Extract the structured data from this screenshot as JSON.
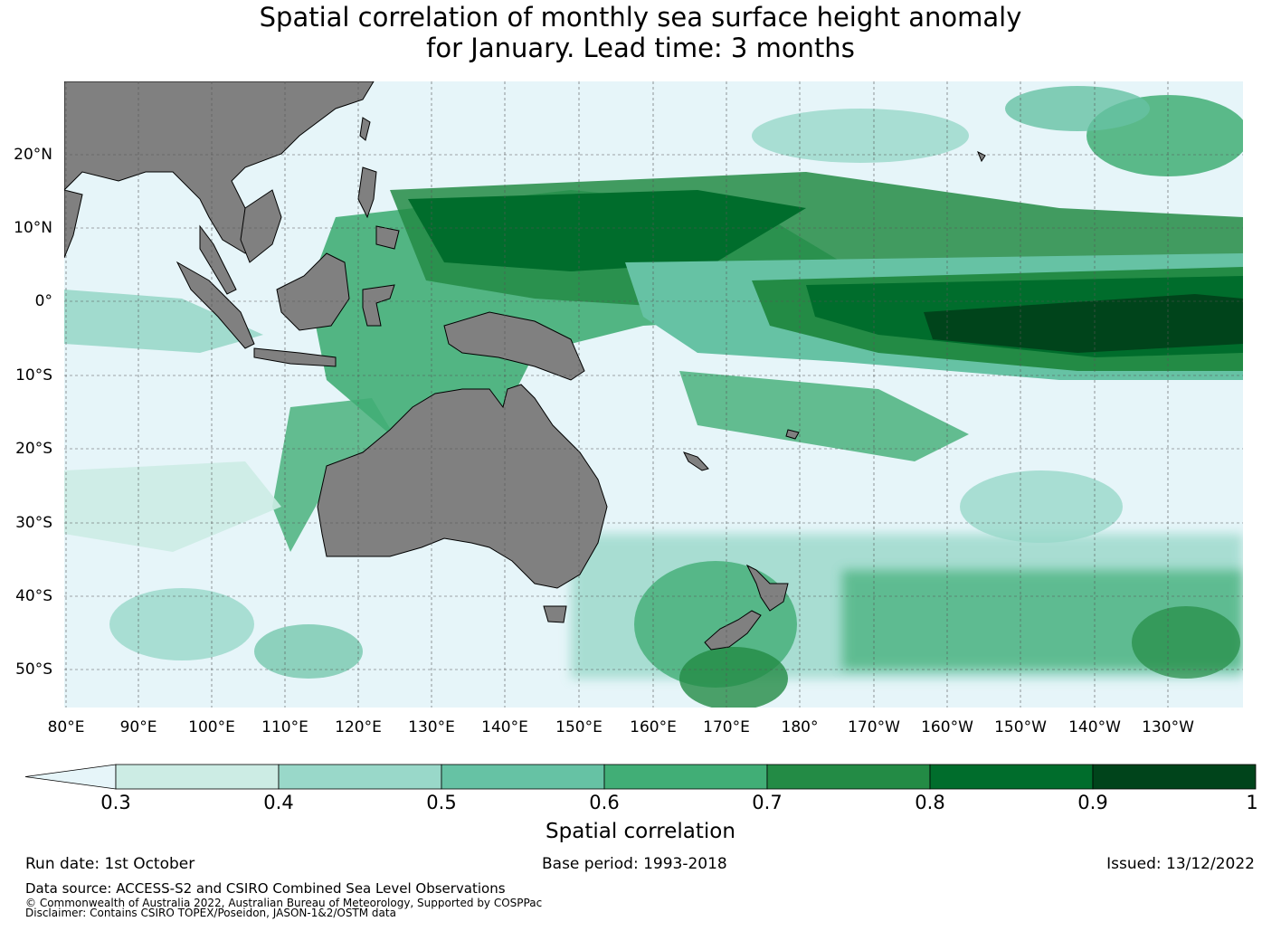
{
  "title": {
    "line1": "Spatial correlation of monthly sea surface height anomaly",
    "line2": "for January. Lead time: 3 months"
  },
  "map": {
    "latitude_labels": [
      "20°N",
      "10°N",
      "0°",
      "10°S",
      "20°S",
      "30°S",
      "40°S",
      "50°S"
    ],
    "longitude_labels": [
      "80°E",
      "90°E",
      "100°E",
      "110°E",
      "120°E",
      "130°E",
      "140°E",
      "150°E",
      "160°E",
      "170°E",
      "180°",
      "170°W",
      "160°W",
      "150°W",
      "140°W",
      "130°W"
    ],
    "land_color": "#808080",
    "ocean_color": "#e6f5f9",
    "palette": [
      "#ccece4",
      "#99d8c9",
      "#66c2a4",
      "#41ae76",
      "#238b45",
      "#006d2c",
      "#00441b"
    ]
  },
  "colorbar": {
    "ticks": [
      "0.3",
      "0.4",
      "0.5",
      "0.6",
      "0.7",
      "0.8",
      "0.9",
      "1"
    ],
    "label": "Spatial correlation",
    "under_color": "#e6f5f9"
  },
  "footer": {
    "run_date": "Run date: 1st October",
    "base_period": "Base period: 1993-2018",
    "issued": "Issued: 13/12/2022",
    "data_source": "Data source: ACCESS-S2 and CSIRO Combined Sea Level Observations",
    "copyright": "© Commonwealth of Australia 2022, Australian Bureau of Meteorology, Supported by COSPPac",
    "disclaimer": "Disclaimer: Contains CSIRO TOPEX/Poseidon, JASON-1&2/OSTM data"
  }
}
